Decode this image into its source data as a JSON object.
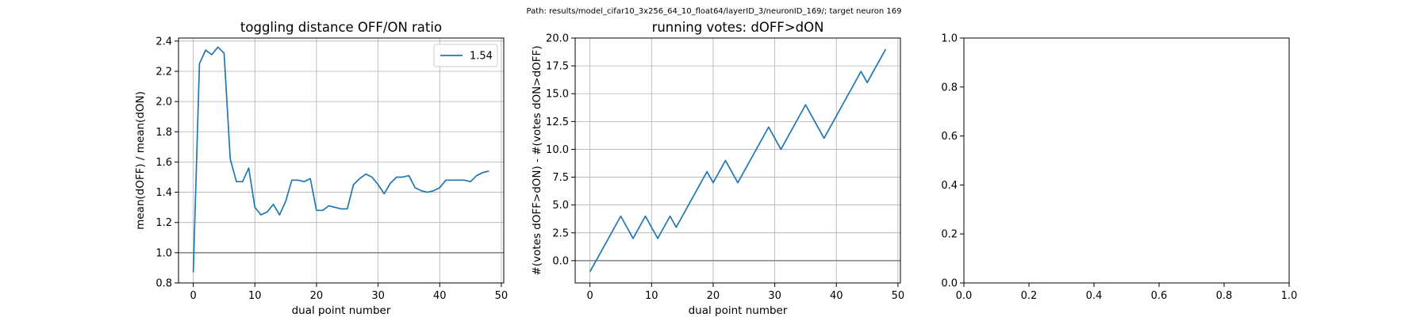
{
  "suptitle": "Path: results/model_cifar10_3x256_64_10_float64/layerID_3/neuronID_169/; target neuron 169",
  "colors": {
    "series": "#1f77b4",
    "refline": "#808080",
    "grid": "#b0b0b0",
    "frame": "#000000"
  },
  "chart_data": [
    {
      "type": "line",
      "title": "toggling distance OFF/ON ratio",
      "xlabel": "dual point number",
      "ylabel": "mean(dOFF) / mean(dON)",
      "xlim": [
        -2.4,
        50.4
      ],
      "ylim": [
        0.8,
        2.42
      ],
      "xticks": [
        0,
        10,
        20,
        30,
        40,
        50
      ],
      "xtick_labels": [
        "0",
        "10",
        "20",
        "30",
        "40",
        "50"
      ],
      "yticks": [
        0.8,
        1.0,
        1.2,
        1.4,
        1.6,
        1.8,
        2.0,
        2.2,
        2.4
      ],
      "ytick_labels": [
        "0.8",
        "1.0",
        "1.2",
        "1.4",
        "1.6",
        "1.8",
        "2.0",
        "2.2",
        "2.4"
      ],
      "grid": true,
      "hline": 1.0,
      "legend": {
        "position": "upper right",
        "entries": [
          "1.54"
        ]
      },
      "series": [
        {
          "name": "1.54",
          "x": [
            0,
            1,
            2,
            3,
            4,
            5,
            6,
            7,
            8,
            9,
            10,
            11,
            12,
            13,
            14,
            15,
            16,
            17,
            18,
            19,
            20,
            21,
            22,
            23,
            24,
            25,
            26,
            27,
            28,
            29,
            30,
            31,
            32,
            33,
            34,
            35,
            36,
            37,
            38,
            39,
            40,
            41,
            42,
            43,
            44,
            45,
            46,
            47,
            48
          ],
          "y": [
            0.87,
            2.25,
            2.34,
            2.31,
            2.36,
            2.32,
            1.62,
            1.47,
            1.47,
            1.56,
            1.3,
            1.25,
            1.27,
            1.32,
            1.25,
            1.34,
            1.48,
            1.48,
            1.47,
            1.49,
            1.28,
            1.28,
            1.31,
            1.3,
            1.29,
            1.29,
            1.45,
            1.49,
            1.52,
            1.5,
            1.45,
            1.39,
            1.46,
            1.5,
            1.5,
            1.51,
            1.43,
            1.41,
            1.4,
            1.41,
            1.43,
            1.48,
            1.48,
            1.48,
            1.48,
            1.47,
            1.51,
            1.53,
            1.54
          ]
        }
      ]
    },
    {
      "type": "line",
      "title": "running votes: dOFF>dON",
      "xlabel": "dual point number",
      "ylabel": "#(votes dOFF>dON) - #(votes dON>dOFF)",
      "xlim": [
        -2.4,
        50.4
      ],
      "ylim": [
        -2.0,
        20.0
      ],
      "xticks": [
        0,
        10,
        20,
        30,
        40,
        50
      ],
      "xtick_labels": [
        "0",
        "10",
        "20",
        "30",
        "40",
        "50"
      ],
      "yticks": [
        0.0,
        2.5,
        5.0,
        7.5,
        10.0,
        12.5,
        15.0,
        17.5,
        20.0
      ],
      "ytick_labels": [
        "0.0",
        "2.5",
        "5.0",
        "7.5",
        "10.0",
        "12.5",
        "15.0",
        "17.5",
        "20.0"
      ],
      "grid": true,
      "hline": 0.0,
      "series": [
        {
          "x": [
            0,
            5,
            7,
            9,
            11,
            13,
            14,
            19,
            20,
            22,
            24,
            29,
            31,
            35,
            38,
            44,
            45,
            48
          ],
          "y": [
            -1,
            4,
            2,
            4,
            2,
            4,
            3,
            8,
            7,
            9,
            7,
            12,
            10,
            14,
            11,
            17,
            16,
            19
          ]
        }
      ]
    },
    {
      "type": "line",
      "title": "",
      "xlabel": "",
      "ylabel": "",
      "xlim": [
        0.0,
        1.0
      ],
      "ylim": [
        0.0,
        1.0
      ],
      "xticks": [
        0.0,
        0.2,
        0.4,
        0.6,
        0.8,
        1.0
      ],
      "xtick_labels": [
        "0.0",
        "0.2",
        "0.4",
        "0.6",
        "0.8",
        "1.0"
      ],
      "yticks": [
        0.0,
        0.2,
        0.4,
        0.6,
        0.8,
        1.0
      ],
      "ytick_labels": [
        "0.0",
        "0.2",
        "0.4",
        "0.6",
        "0.8",
        "1.0"
      ],
      "grid": false,
      "series": []
    }
  ]
}
